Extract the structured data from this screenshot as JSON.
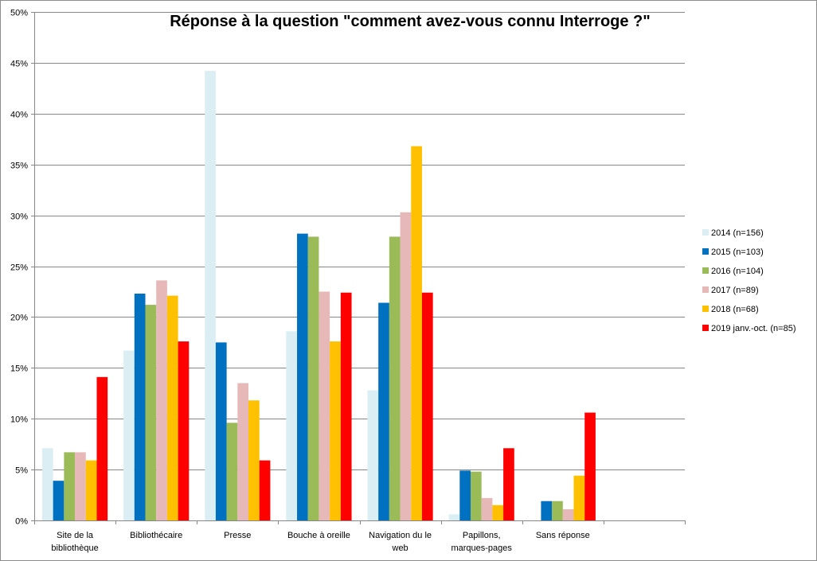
{
  "chart_data": {
    "type": "bar",
    "title": "Réponse à la question \"comment avez-vous connu Interroge ?\"",
    "xlabel": "",
    "ylabel": "",
    "ylim": [
      0,
      50
    ],
    "yticks": [
      "0%",
      "5%",
      "10%",
      "15%",
      "20%",
      "25%",
      "30%",
      "35%",
      "40%",
      "45%",
      "50%"
    ],
    "grid": true,
    "legend_position": "right",
    "categories": [
      [
        "Site de la",
        "bibliothèque"
      ],
      [
        "Bibliothécaire"
      ],
      [
        "Presse"
      ],
      [
        "Bouche à oreille"
      ],
      [
        "Navigation du le",
        "web"
      ],
      [
        "Papillons,",
        "marques-pages"
      ],
      [
        "Sans réponse"
      ],
      [
        ""
      ]
    ],
    "series": [
      {
        "name": "2014 (n=156)",
        "color": "#daeef3",
        "values": [
          7.1,
          16.7,
          44.2,
          18.6,
          12.8,
          0.6,
          0,
          null
        ]
      },
      {
        "name": "2015 (n=103)",
        "color": "#0070c0",
        "values": [
          3.9,
          22.3,
          17.5,
          28.2,
          21.4,
          4.9,
          1.9,
          null
        ]
      },
      {
        "name": "2016 (n=104)",
        "color": "#9bbb59",
        "values": [
          6.7,
          21.2,
          9.6,
          27.9,
          27.9,
          4.8,
          1.9,
          null
        ]
      },
      {
        "name": "2017 (n=89)",
        "color": "#e6b9b8",
        "values": [
          6.7,
          23.6,
          13.5,
          22.5,
          30.3,
          2.2,
          1.1,
          null
        ]
      },
      {
        "name": "2018 (n=68)",
        "color": "#ffc000",
        "values": [
          5.9,
          22.1,
          11.8,
          17.6,
          36.8,
          1.5,
          4.4,
          null
        ]
      },
      {
        "name": "2019 janv.-oct. (n=85)",
        "color": "#ff0000",
        "values": [
          14.1,
          17.6,
          5.9,
          22.4,
          22.4,
          7.1,
          10.6,
          null
        ]
      }
    ]
  }
}
